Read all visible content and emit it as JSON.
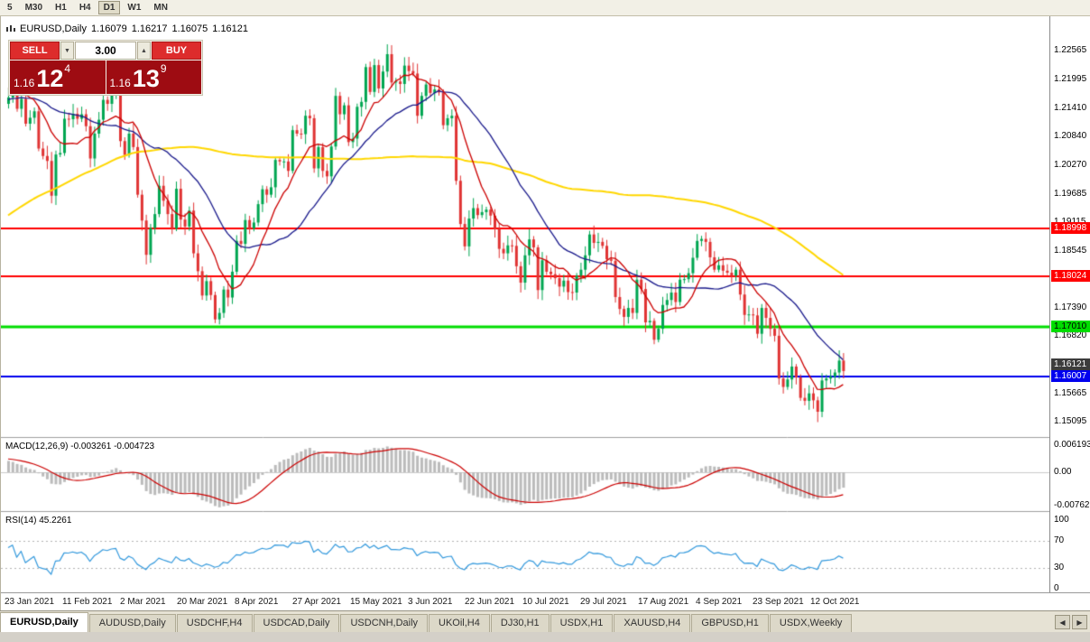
{
  "toolbar": {
    "timeframes": [
      "5",
      "M30",
      "H1",
      "H4",
      "D1",
      "W1",
      "MN"
    ],
    "active_timeframe": "D1"
  },
  "header": {
    "symbol": "EURUSD,Daily",
    "open": "1.16079",
    "high": "1.16217",
    "low": "1.16075",
    "close": "1.16121"
  },
  "trade_widget": {
    "sell_label": "SELL",
    "buy_label": "BUY",
    "volume": "3.00",
    "spin_down": "▼",
    "spin_up": "▲",
    "bid": {
      "prefix": "1.16",
      "big": "12",
      "sup": "4"
    },
    "ask": {
      "prefix": "1.16",
      "big": "13",
      "sup": "9"
    }
  },
  "price_axis": {
    "ticks": [
      "1.22565",
      "1.21995",
      "1.21410",
      "1.20840",
      "1.20270",
      "1.19685",
      "1.19115",
      "1.18545",
      "1.17960",
      "1.17390",
      "1.16820",
      "1.16235",
      "1.15665",
      "1.15095"
    ],
    "current_price": {
      "label": "1.16121",
      "value": 1.16121,
      "bg": "#3c3c3c",
      "text": "#ffffff"
    }
  },
  "macd_panel": {
    "name": "MACD(12,26,9)",
    "values": "-0.003261 -0.004723",
    "axis": [
      "0.006193",
      "0.00",
      "-0.007621"
    ]
  },
  "rsi_panel": {
    "name": "RSI(14)",
    "value": "45.2261",
    "axis": [
      "100",
      "70",
      "30",
      "0"
    ]
  },
  "date_axis": [
    "23 Jan 2021",
    "11 Feb 2021",
    "2 Mar 2021",
    "20 Mar 2021",
    "8 Apr 2021",
    "27 Apr 2021",
    "15 May 2021",
    "3 Jun 2021",
    "22 Jun 2021",
    "10 Jul 2021",
    "29 Jul 2021",
    "17 Aug 2021",
    "4 Sep 2021",
    "23 Sep 2021",
    "12 Oct 2021"
  ],
  "tabs": {
    "items": [
      "EURUSD,Daily",
      "AUDUSD,Daily",
      "USDCHF,H4",
      "USDCAD,Daily",
      "USDCNH,Daily",
      "UKOil,H4",
      "DJ30,H1",
      "USDX,H1",
      "XAUUSD,H4",
      "GBPUSD,H1",
      "USDX,Weekly"
    ],
    "active_index": 0,
    "scroll_left": "◀",
    "scroll_right": "▶"
  },
  "chart_data": {
    "type": "candlestick",
    "symbol": "EURUSD",
    "timeframe": "Daily",
    "title": "EURUSD,Daily",
    "ylim": [
      1.1465,
      1.229
    ],
    "up_color": "#00a651",
    "down_color": "#e03333",
    "closes": [
      1.2163,
      1.2171,
      1.214,
      1.216,
      1.211,
      1.2122,
      1.2135,
      1.206,
      1.2045,
      1.2035,
      1.1965,
      1.2048,
      1.2051,
      1.212,
      1.2119,
      1.213,
      1.212,
      1.2129,
      1.2105,
      1.204,
      1.209,
      1.2118,
      1.2158,
      1.215,
      1.2168,
      1.2175,
      1.2075,
      1.2047,
      1.209,
      1.2063,
      1.1967,
      1.1915,
      1.1846,
      1.19,
      1.1928,
      1.1985,
      1.1955,
      1.1928,
      1.1899,
      1.1979,
      1.1917,
      1.1903,
      1.1935,
      1.1849,
      1.1813,
      1.1764,
      1.1793,
      1.1765,
      1.1716,
      1.1729,
      1.1776,
      1.176,
      1.1812,
      1.1874,
      1.1868,
      1.1916,
      1.1899,
      1.1911,
      1.1948,
      1.1978,
      1.1967,
      1.1982,
      1.2037,
      1.2034,
      1.2034,
      1.2015,
      1.2097,
      1.209,
      1.2089,
      1.2126,
      1.2121,
      1.202,
      1.2063,
      1.2015,
      1.2004,
      1.2064,
      1.2166,
      1.2129,
      1.2147,
      1.2073,
      1.208,
      1.2144,
      1.2154,
      1.2224,
      1.2174,
      1.2228,
      1.2181,
      1.2215,
      1.225,
      1.2193,
      1.2195,
      1.219,
      1.2227,
      1.2216,
      1.2211,
      1.2126,
      1.2166,
      1.2189,
      1.2172,
      1.2179,
      1.2173,
      1.2107,
      1.2121,
      1.2126,
      1.1995,
      1.1908,
      1.1863,
      1.1919,
      1.194,
      1.1926,
      1.1932,
      1.1937,
      1.1925,
      1.1898,
      1.1858,
      1.1849,
      1.1865,
      1.1864,
      1.1823,
      1.179,
      1.1845,
      1.1877,
      1.1861,
      1.1775,
      1.1835,
      1.1812,
      1.1807,
      1.1799,
      1.1782,
      1.1794,
      1.1771,
      1.177,
      1.1804,
      1.1816,
      1.1845,
      1.1887,
      1.187,
      1.1872,
      1.1864,
      1.1837,
      1.1834,
      1.1761,
      1.1737,
      1.1721,
      1.1739,
      1.1729,
      1.1796,
      1.1777,
      1.171,
      1.1713,
      1.1675,
      1.1697,
      1.1745,
      1.1755,
      1.177,
      1.1751,
      1.1796,
      1.1797,
      1.1809,
      1.184,
      1.1874,
      1.1878,
      1.1872,
      1.1841,
      1.1816,
      1.1825,
      1.1814,
      1.181,
      1.1804,
      1.1816,
      1.1766,
      1.1725,
      1.1726,
      1.1724,
      1.1687,
      1.1739,
      1.1719,
      1.1697,
      1.1683,
      1.1597,
      1.158,
      1.1595,
      1.1621,
      1.1599,
      1.1558,
      1.1552,
      1.1567,
      1.1553,
      1.153,
      1.1593,
      1.1597,
      1.1601,
      1.1609,
      1.1633,
      1.1612
    ],
    "moving_averages": [
      {
        "period": 10,
        "color": "#cc0000"
      },
      {
        "period": 25,
        "color": "#1a1a8c"
      },
      {
        "period": 100,
        "color": "#ffd700"
      }
    ],
    "hlines": [
      {
        "price": 1.18998,
        "label": "1.18998",
        "color": "#ff0000",
        "text": "#ffffff",
        "width": 2
      },
      {
        "price": 1.18024,
        "label": "1.18024",
        "color": "#ff0000",
        "text": "#ffffff",
        "width": 2
      },
      {
        "price": 1.1701,
        "label": "1.17010",
        "color": "#00dd00",
        "text": "#000000",
        "width": 3
      },
      {
        "price": 1.16007,
        "label": "1.16007",
        "color": "#0000ee",
        "text": "#ffffff",
        "width": 2
      }
    ],
    "macd": {
      "fast": 12,
      "slow": 26,
      "signal": 9,
      "histogram_color": "#bbbbbb",
      "signal_color": "#cc0000"
    },
    "rsi": {
      "period": 14,
      "color": "#3399dd",
      "levels": [
        70,
        30
      ]
    }
  }
}
